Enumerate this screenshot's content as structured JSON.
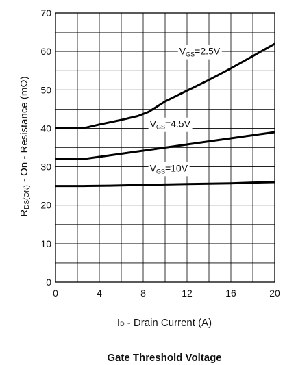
{
  "chart_data": {
    "type": "line",
    "title": "",
    "caption": "Gate Threshold Voltage",
    "xlabel": {
      "main": "I",
      "sub": "D",
      "rest": " - Drain Current (A)"
    },
    "ylabel": {
      "main": "R",
      "sub": "DS(ON)",
      "rest": " - On - Resistance (mΩ)"
    },
    "xlim": [
      0,
      20
    ],
    "ylim": [
      0,
      70
    ],
    "xticks": [
      0,
      4,
      8,
      12,
      16,
      20
    ],
    "yticks": [
      0,
      10,
      20,
      30,
      40,
      50,
      60,
      70
    ],
    "x_grid_step": 2,
    "y_grid_step": 5,
    "grid": true,
    "series": [
      {
        "name": "VGS=2.5V",
        "label": {
          "main": "V",
          "sub": "GS",
          "rest": "=2.5V"
        },
        "points": [
          [
            0,
            40
          ],
          [
            2.5,
            40
          ],
          [
            4,
            41
          ],
          [
            6,
            42.2
          ],
          [
            7.5,
            43.2
          ],
          [
            8.5,
            44.3
          ],
          [
            10,
            47
          ],
          [
            12,
            49.8
          ],
          [
            14,
            52.6
          ],
          [
            16,
            55.6
          ],
          [
            18,
            58.8
          ],
          [
            20,
            62
          ]
        ]
      },
      {
        "name": "VGS=4.5V",
        "label": {
          "main": "V",
          "sub": "GS",
          "rest": "=4.5V"
        },
        "points": [
          [
            0,
            32
          ],
          [
            2.5,
            32
          ],
          [
            4,
            32.6
          ],
          [
            6,
            33.4
          ],
          [
            8,
            34.2
          ],
          [
            10,
            35
          ],
          [
            12,
            35.8
          ],
          [
            14,
            36.6
          ],
          [
            16,
            37.4
          ],
          [
            18,
            38.2
          ],
          [
            20,
            39
          ]
        ]
      },
      {
        "name": "VGS=10V",
        "label": {
          "main": "V",
          "sub": "GS",
          "rest": "=10V"
        },
        "points": [
          [
            0,
            25
          ],
          [
            2.5,
            25
          ],
          [
            5,
            25.1
          ],
          [
            8,
            25.3
          ],
          [
            10,
            25.4
          ],
          [
            12,
            25.5
          ],
          [
            14,
            25.6
          ],
          [
            16,
            25.7
          ],
          [
            18,
            25.9
          ],
          [
            20,
            26
          ]
        ]
      }
    ],
    "color": "#000000"
  }
}
